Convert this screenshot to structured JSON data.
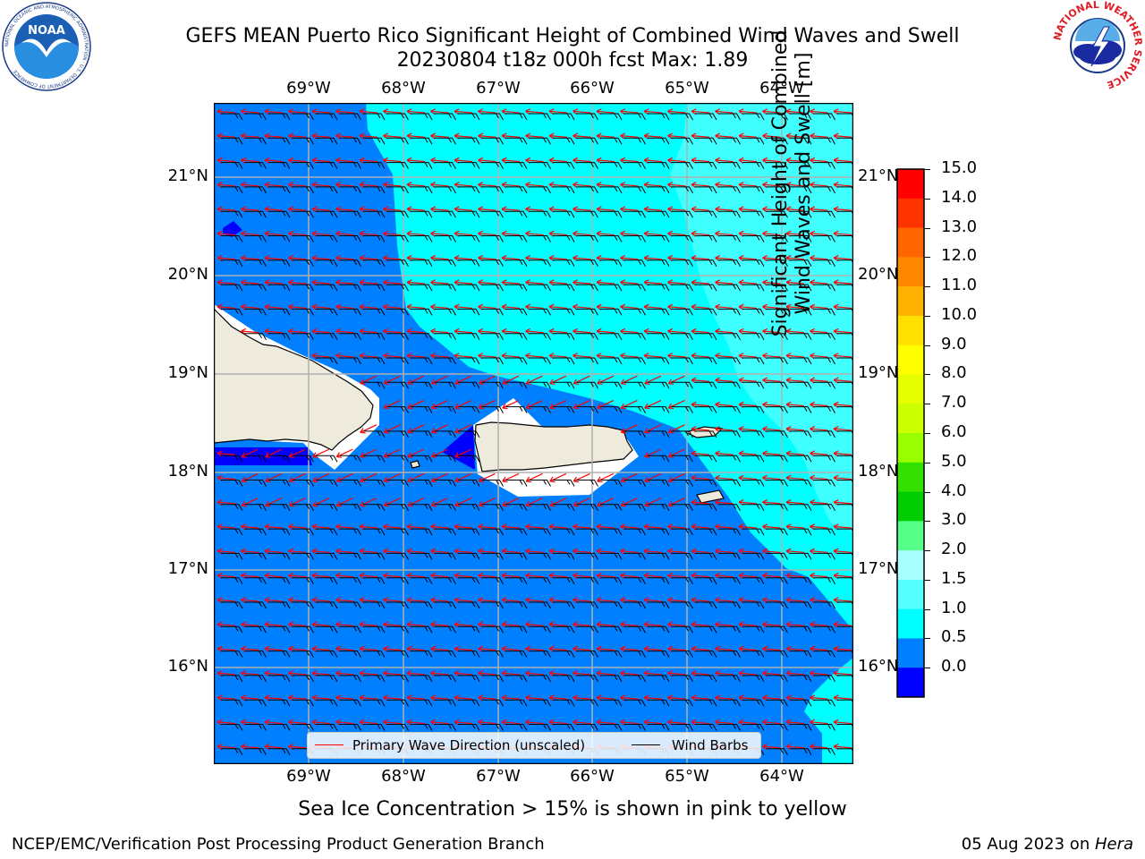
{
  "header": {
    "title_line1": "GEFS MEAN Puerto Rico Significant Height of Combined Wind Waves and Swell",
    "title_line2": "20230804 t18z 000h fcst   Max: 1.89",
    "noaa_logo_text": "NOAA",
    "noaa_ring_text": "NATIONAL OCEANIC AND ATMOSPHERIC ADMINISTRATION · U.S. DEPARTMENT OF COMMERCE",
    "nws_ring_text": "NATIONAL WEATHER SERVICE"
  },
  "map": {
    "lon_labels": [
      "69°W",
      "68°W",
      "67°W",
      "66°W",
      "65°W",
      "64°W"
    ],
    "lat_labels": [
      "21°N",
      "20°N",
      "19°N",
      "18°N",
      "17°N",
      "16°N"
    ],
    "legend": {
      "wave_label": "Primary Wave Direction (unscaled)",
      "wind_label": "Wind Barbs",
      "wave_color": "#ff0000",
      "wind_color": "#000000"
    },
    "colors": {
      "land": "#efebdc",
      "grid": "#b0b0b0",
      "level_0": "#0000ff",
      "level_05": "#0080ff",
      "level_1": "#00ffff",
      "level_15": "#40ffff",
      "level_2": "#80ffff"
    }
  },
  "colorbar": {
    "title_line1": "Significant Height of Combined",
    "title_line2": "Wind Waves and Swell [m]",
    "ticks": [
      "15.0",
      "14.0",
      "13.0",
      "12.0",
      "11.0",
      "10.0",
      "9.0",
      "8.0",
      "7.0",
      "6.0",
      "5.0",
      "4.0",
      "3.0",
      "2.0",
      "1.5",
      "1.0",
      "0.5",
      "0.0"
    ],
    "segments": [
      "#ff0000",
      "#ff3300",
      "#ff6600",
      "#ff8800",
      "#ffb000",
      "#ffe000",
      "#ffff00",
      "#e6ff00",
      "#ccff00",
      "#99ff00",
      "#33e000",
      "#00cc00",
      "#55ff88",
      "#aaffff",
      "#55ffff",
      "#00ffff",
      "#0080ff",
      "#0000ff"
    ]
  },
  "footer": {
    "sea_ice_note": "Sea Ice Concentration > 15% is shown in pink to yellow",
    "branch": "NCEP/EMC/Verification Post Processing Product Generation Branch",
    "date": "05 Aug 2023 on ",
    "host": "Hera"
  }
}
